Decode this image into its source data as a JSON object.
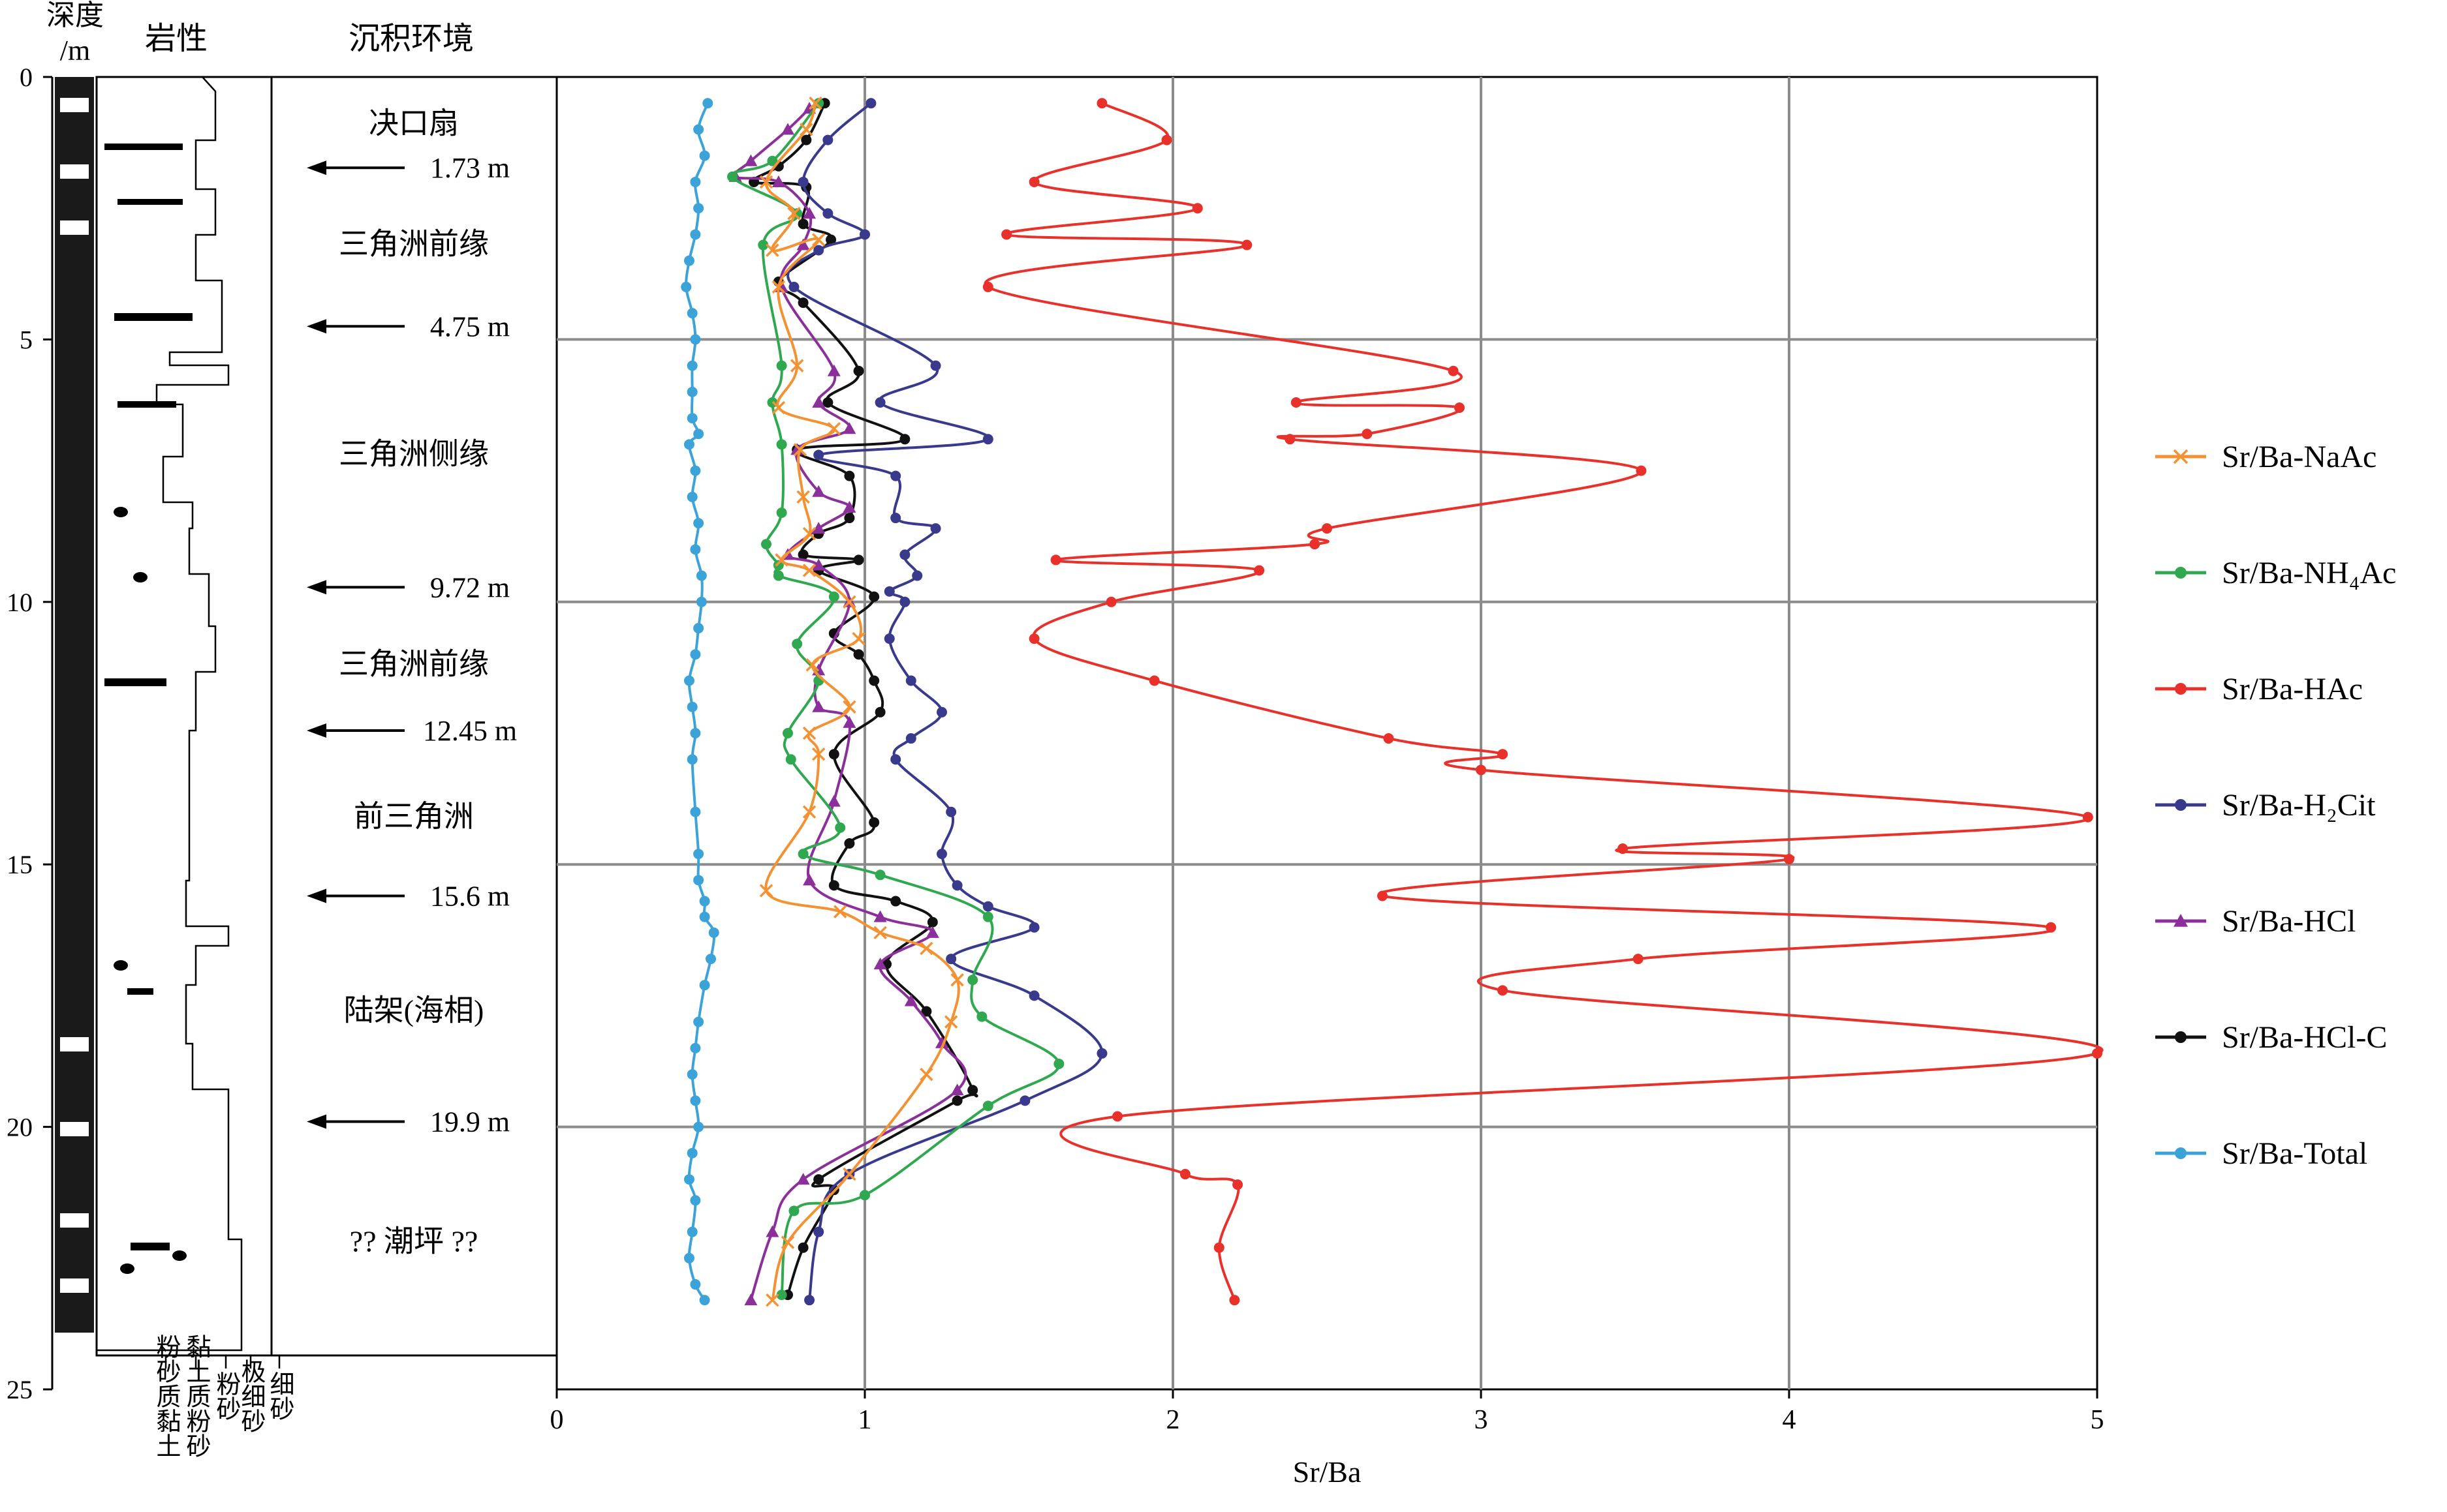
{
  "headers": {
    "depth": "深度/m",
    "depth_line1": "深度",
    "depth_line2": "/m",
    "lithology": "岩性",
    "environment": "沉积环境"
  },
  "depth_axis": {
    "ticks": [
      0,
      5,
      10,
      15,
      20,
      25
    ],
    "ylim": [
      0,
      25
    ]
  },
  "grain_size_labels": [
    "粉砂质黏土",
    "黏土质粉砂",
    "粉砂",
    "极细砂",
    "细砂"
  ],
  "environments": [
    {
      "name": "决口扇",
      "depth": 0.9
    },
    {
      "name": "三角洲前缘",
      "depth": 3.2
    },
    {
      "name": "三角洲侧缘",
      "depth": 7.2
    },
    {
      "name": "三角洲前缘",
      "depth": 11.2
    },
    {
      "name": "前三角洲",
      "depth": 14.1
    },
    {
      "name": "陆架(海相)",
      "depth": 17.8
    },
    {
      "name": "?? 潮坪 ??",
      "depth": 22.2
    }
  ],
  "boundaries": [
    {
      "label": "1.73 m",
      "depth": 1.73
    },
    {
      "label": "4.75 m",
      "depth": 4.75
    },
    {
      "label": "9.72 m",
      "depth": 9.72
    },
    {
      "label": "12.45 m",
      "depth": 12.45
    },
    {
      "label": "15.6 m",
      "depth": 15.6
    },
    {
      "label": "19.9 m",
      "depth": 19.9
    }
  ],
  "chart_data": {
    "type": "line",
    "xlabel": "Sr/Ba",
    "ylabel": "深度/m",
    "xlim": [
      0,
      5
    ],
    "ylim": [
      0,
      25
    ],
    "y_inverted": true,
    "x_ticks": [
      0,
      1,
      2,
      3,
      4,
      5
    ],
    "grid": true,
    "legend_position": "right",
    "series": [
      {
        "name": "Sr/Ba-NaAc",
        "label": "Sr/Ba-NaAc",
        "color": "#f39232",
        "marker": "x",
        "points": [
          [
            0.84,
            0.5
          ],
          [
            0.81,
            1.0
          ],
          [
            0.68,
            2.0
          ],
          [
            0.77,
            2.6
          ],
          [
            0.7,
            3.3
          ],
          [
            0.85,
            3.1
          ],
          [
            0.72,
            4.0
          ],
          [
            0.78,
            5.5
          ],
          [
            0.72,
            6.3
          ],
          [
            0.9,
            6.7
          ],
          [
            0.79,
            7.1
          ],
          [
            0.8,
            8.0
          ],
          [
            0.82,
            8.7
          ],
          [
            0.73,
            9.2
          ],
          [
            0.82,
            9.4
          ],
          [
            0.95,
            10.0
          ],
          [
            0.98,
            10.7
          ],
          [
            0.83,
            11.2
          ],
          [
            0.95,
            12.0
          ],
          [
            0.82,
            12.5
          ],
          [
            0.85,
            12.9
          ],
          [
            0.82,
            14.0
          ],
          [
            0.68,
            15.5
          ],
          [
            0.92,
            15.9
          ],
          [
            1.05,
            16.3
          ],
          [
            1.2,
            16.6
          ],
          [
            1.3,
            17.2
          ],
          [
            1.28,
            18.0
          ],
          [
            1.2,
            19.0
          ],
          [
            0.95,
            20.9
          ],
          [
            0.75,
            22.2
          ],
          [
            0.7,
            23.3
          ]
        ]
      },
      {
        "name": "Sr/Ba-NH4Ac",
        "label": "Sr/Ba-NH₄Ac",
        "color": "#2fa84f",
        "marker": "o",
        "points": [
          [
            0.85,
            0.5
          ],
          [
            0.7,
            1.6
          ],
          [
            0.57,
            1.9
          ],
          [
            0.78,
            2.6
          ],
          [
            0.67,
            3.2
          ],
          [
            0.73,
            5.5
          ],
          [
            0.7,
            6.2
          ],
          [
            0.73,
            7.0
          ],
          [
            0.73,
            8.3
          ],
          [
            0.68,
            8.9
          ],
          [
            0.72,
            9.3
          ],
          [
            0.72,
            9.5
          ],
          [
            0.9,
            9.9
          ],
          [
            0.78,
            10.8
          ],
          [
            0.85,
            11.5
          ],
          [
            0.75,
            12.5
          ],
          [
            0.76,
            13.0
          ],
          [
            0.92,
            14.3
          ],
          [
            0.8,
            14.8
          ],
          [
            1.05,
            15.2
          ],
          [
            1.4,
            16.0
          ],
          [
            1.35,
            17.2
          ],
          [
            1.38,
            17.9
          ],
          [
            1.63,
            18.8
          ],
          [
            1.4,
            19.6
          ],
          [
            1.0,
            21.3
          ],
          [
            0.77,
            21.6
          ],
          [
            0.73,
            23.2
          ]
        ]
      },
      {
        "name": "Sr/Ba-HAc",
        "label": "Sr/Ba-HAc",
        "color": "#e8312b",
        "marker": "o",
        "points": [
          [
            1.77,
            0.5
          ],
          [
            1.98,
            1.2
          ],
          [
            1.55,
            2.0
          ],
          [
            2.08,
            2.5
          ],
          [
            1.46,
            3.0
          ],
          [
            2.24,
            3.2
          ],
          [
            1.4,
            4.0
          ],
          [
            2.91,
            5.6
          ],
          [
            2.4,
            6.2
          ],
          [
            2.93,
            6.3
          ],
          [
            2.63,
            6.8
          ],
          [
            2.38,
            6.9
          ],
          [
            3.52,
            7.5
          ],
          [
            2.5,
            8.6
          ],
          [
            2.46,
            8.9
          ],
          [
            1.62,
            9.2
          ],
          [
            2.28,
            9.4
          ],
          [
            1.8,
            10.0
          ],
          [
            1.55,
            10.7
          ],
          [
            1.94,
            11.5
          ],
          [
            2.7,
            12.6
          ],
          [
            3.07,
            12.9
          ],
          [
            3.0,
            13.2
          ],
          [
            4.97,
            14.1
          ],
          [
            3.46,
            14.7
          ],
          [
            4.0,
            14.9
          ],
          [
            2.68,
            15.6
          ],
          [
            4.85,
            16.2
          ],
          [
            3.51,
            16.8
          ],
          [
            3.07,
            17.4
          ],
          [
            5.0,
            18.6
          ],
          [
            1.82,
            19.8
          ],
          [
            2.04,
            20.9
          ],
          [
            2.21,
            21.1
          ],
          [
            2.15,
            22.3
          ],
          [
            2.2,
            23.3
          ]
        ]
      },
      {
        "name": "Sr/Ba-H2Cit",
        "label": "Sr/Ba-H₂Cit",
        "color": "#3a3a8c",
        "marker": "o",
        "points": [
          [
            1.02,
            0.5
          ],
          [
            0.88,
            1.2
          ],
          [
            0.8,
            2.0
          ],
          [
            0.88,
            2.6
          ],
          [
            1.0,
            3.0
          ],
          [
            0.85,
            3.3
          ],
          [
            0.77,
            4.0
          ],
          [
            1.23,
            5.5
          ],
          [
            1.05,
            6.2
          ],
          [
            1.4,
            6.9
          ],
          [
            0.85,
            7.2
          ],
          [
            1.1,
            7.6
          ],
          [
            1.1,
            8.4
          ],
          [
            1.23,
            8.6
          ],
          [
            1.13,
            9.1
          ],
          [
            1.17,
            9.5
          ],
          [
            1.08,
            9.8
          ],
          [
            1.13,
            10.0
          ],
          [
            1.08,
            10.7
          ],
          [
            1.15,
            11.5
          ],
          [
            1.25,
            12.1
          ],
          [
            1.15,
            12.6
          ],
          [
            1.1,
            13.0
          ],
          [
            1.28,
            14.0
          ],
          [
            1.25,
            14.8
          ],
          [
            1.3,
            15.4
          ],
          [
            1.4,
            15.8
          ],
          [
            1.55,
            16.2
          ],
          [
            1.28,
            16.8
          ],
          [
            1.55,
            17.5
          ],
          [
            1.77,
            18.6
          ],
          [
            1.52,
            19.5
          ],
          [
            0.95,
            20.9
          ],
          [
            0.85,
            22.0
          ],
          [
            0.82,
            23.3
          ]
        ]
      },
      {
        "name": "Sr/Ba-HCl",
        "label": "Sr/Ba-HCl",
        "color": "#8b2f9b",
        "marker": "triangle",
        "points": [
          [
            0.82,
            0.6
          ],
          [
            0.75,
            1.0
          ],
          [
            0.63,
            1.6
          ],
          [
            0.58,
            1.9
          ],
          [
            0.72,
            2.0
          ],
          [
            0.82,
            2.6
          ],
          [
            0.8,
            3.2
          ],
          [
            0.73,
            4.0
          ],
          [
            0.9,
            5.6
          ],
          [
            0.85,
            6.2
          ],
          [
            0.95,
            6.7
          ],
          [
            0.78,
            7.1
          ],
          [
            0.85,
            7.9
          ],
          [
            0.95,
            8.2
          ],
          [
            0.85,
            8.6
          ],
          [
            0.75,
            9.1
          ],
          [
            0.85,
            9.3
          ],
          [
            0.95,
            10.0
          ],
          [
            0.85,
            11.3
          ],
          [
            0.85,
            12.0
          ],
          [
            0.95,
            12.3
          ],
          [
            0.9,
            13.8
          ],
          [
            0.82,
            15.3
          ],
          [
            1.05,
            16.0
          ],
          [
            1.22,
            16.3
          ],
          [
            1.05,
            16.9
          ],
          [
            1.15,
            17.6
          ],
          [
            1.25,
            18.4
          ],
          [
            1.3,
            19.3
          ],
          [
            0.8,
            21.0
          ],
          [
            0.7,
            22.0
          ],
          [
            0.63,
            23.3
          ]
        ]
      },
      {
        "name": "Sr/Ba-HCl-C",
        "label": "Sr/Ba-HCl-C",
        "color": "#111111",
        "marker": "o",
        "points": [
          [
            0.87,
            0.5
          ],
          [
            0.81,
            1.2
          ],
          [
            0.72,
            1.7
          ],
          [
            0.64,
            2.0
          ],
          [
            0.81,
            2.1
          ],
          [
            0.8,
            2.8
          ],
          [
            0.89,
            3.1
          ],
          [
            0.72,
            3.9
          ],
          [
            0.8,
            4.3
          ],
          [
            0.98,
            5.6
          ],
          [
            0.88,
            6.2
          ],
          [
            1.13,
            6.9
          ],
          [
            0.78,
            7.1
          ],
          [
            0.95,
            7.6
          ],
          [
            0.95,
            8.4
          ],
          [
            0.85,
            8.7
          ],
          [
            0.8,
            9.1
          ],
          [
            0.98,
            9.2
          ],
          [
            0.85,
            9.4
          ],
          [
            1.03,
            9.9
          ],
          [
            0.9,
            10.6
          ],
          [
            0.98,
            11.0
          ],
          [
            1.03,
            11.5
          ],
          [
            1.05,
            12.1
          ],
          [
            0.9,
            12.9
          ],
          [
            1.03,
            14.2
          ],
          [
            0.95,
            14.6
          ],
          [
            0.9,
            15.4
          ],
          [
            1.1,
            15.7
          ],
          [
            1.22,
            16.1
          ],
          [
            1.07,
            16.9
          ],
          [
            1.2,
            17.8
          ],
          [
            1.35,
            19.3
          ],
          [
            1.3,
            19.5
          ],
          [
            0.85,
            21.0
          ],
          [
            0.9,
            21.2
          ],
          [
            0.8,
            22.3
          ],
          [
            0.75,
            23.2
          ]
        ]
      },
      {
        "name": "Sr/Ba-Total",
        "label": "Sr/Ba-Total",
        "color": "#3ba3d8",
        "marker": "o",
        "points": [
          [
            0.49,
            0.5
          ],
          [
            0.46,
            1.0
          ],
          [
            0.48,
            1.5
          ],
          [
            0.45,
            2.0
          ],
          [
            0.46,
            2.5
          ],
          [
            0.45,
            3.0
          ],
          [
            0.43,
            3.5
          ],
          [
            0.42,
            4.0
          ],
          [
            0.44,
            4.5
          ],
          [
            0.45,
            5.0
          ],
          [
            0.44,
            5.5
          ],
          [
            0.44,
            6.0
          ],
          [
            0.44,
            6.5
          ],
          [
            0.46,
            6.8
          ],
          [
            0.43,
            7.0
          ],
          [
            0.45,
            7.5
          ],
          [
            0.44,
            8.0
          ],
          [
            0.46,
            8.5
          ],
          [
            0.45,
            9.0
          ],
          [
            0.47,
            9.5
          ],
          [
            0.47,
            10.0
          ],
          [
            0.46,
            10.5
          ],
          [
            0.45,
            11.0
          ],
          [
            0.43,
            11.5
          ],
          [
            0.44,
            12.0
          ],
          [
            0.45,
            12.5
          ],
          [
            0.44,
            13.0
          ],
          [
            0.45,
            14.0
          ],
          [
            0.46,
            14.8
          ],
          [
            0.46,
            15.3
          ],
          [
            0.48,
            15.7
          ],
          [
            0.48,
            16.0
          ],
          [
            0.51,
            16.3
          ],
          [
            0.5,
            16.8
          ],
          [
            0.48,
            17.3
          ],
          [
            0.46,
            18.0
          ],
          [
            0.45,
            18.5
          ],
          [
            0.44,
            19.0
          ],
          [
            0.45,
            19.5
          ],
          [
            0.46,
            20.0
          ],
          [
            0.44,
            20.5
          ],
          [
            0.43,
            21.0
          ],
          [
            0.45,
            21.4
          ],
          [
            0.44,
            22.0
          ],
          [
            0.43,
            22.5
          ],
          [
            0.45,
            23.0
          ],
          [
            0.48,
            23.3
          ]
        ]
      }
    ]
  }
}
